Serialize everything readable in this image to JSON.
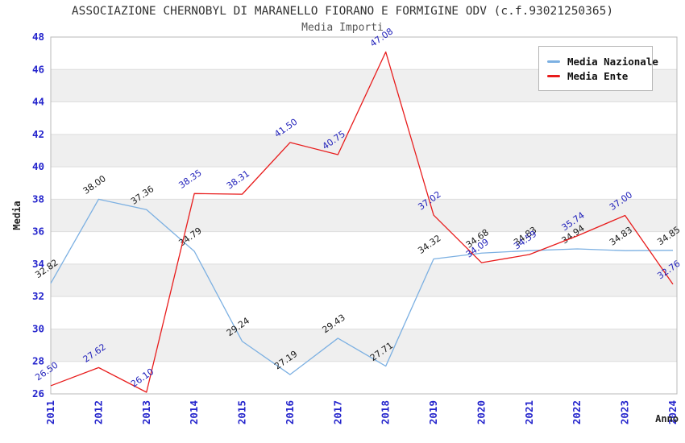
{
  "chart_data": {
    "type": "line",
    "title": "ASSOCIAZIONE CHERNOBYL DI MARANELLO FIORANO E FORMIGINE ODV (c.f.93021250365)",
    "subtitle": "Media Importi",
    "xlabel": "Anno",
    "ylabel": "Media",
    "ylim": [
      26,
      48
    ],
    "yticks": [
      26,
      28,
      30,
      32,
      34,
      36,
      38,
      40,
      42,
      44,
      46,
      48
    ],
    "categories": [
      "2011",
      "2012",
      "2013",
      "2014",
      "2015",
      "2016",
      "2017",
      "2018",
      "2019",
      "2020",
      "2021",
      "2022",
      "2023",
      "2024"
    ],
    "series": [
      {
        "name": "Media Nazionale",
        "color": "#7cb0e2",
        "label_color": "#1a1a1a",
        "values": [
          32.82,
          38.0,
          37.36,
          34.79,
          29.24,
          27.19,
          29.43,
          27.71,
          34.32,
          34.68,
          34.83,
          34.94,
          34.83,
          34.85
        ]
      },
      {
        "name": "Media Ente",
        "color": "#e81c1c",
        "label_color": "#2323bb",
        "values": [
          26.5,
          27.62,
          26.1,
          38.35,
          38.31,
          41.5,
          40.75,
          47.08,
          37.02,
          34.09,
          34.59,
          35.74,
          37.0,
          32.76
        ]
      }
    ],
    "legend": {
      "position": "top-right"
    },
    "grid": true,
    "colors": {
      "tick": "#2424cc",
      "stripe": "#efefef",
      "grid": "#dedede",
      "border": "#b8b8b8"
    }
  }
}
